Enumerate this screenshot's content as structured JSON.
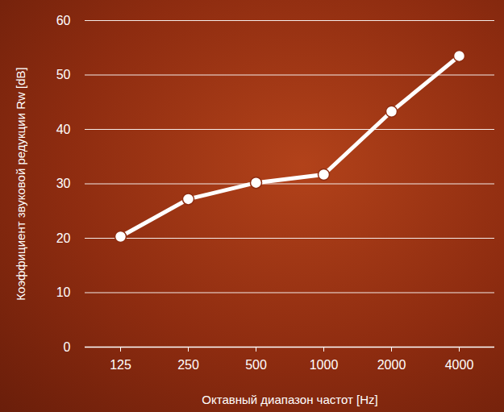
{
  "chart_data": {
    "type": "line",
    "categories": [
      "125",
      "250",
      "500",
      "1000",
      "2000",
      "4000"
    ],
    "series": [
      {
        "name": "Rw",
        "color": "#ffffff",
        "values": [
          20.3,
          27.2,
          30.2,
          31.7,
          43.3,
          53.5
        ],
        "marker": "circle",
        "line_style": "solid"
      }
    ],
    "x_label": "Октавный диапазон частот [Hz]",
    "y_label": "Коэффициент звуковой редукции Rw [dB]",
    "ylim": [
      0,
      60
    ],
    "yticks": [
      0,
      10,
      20,
      30,
      40,
      50,
      60
    ],
    "grid": true
  }
}
